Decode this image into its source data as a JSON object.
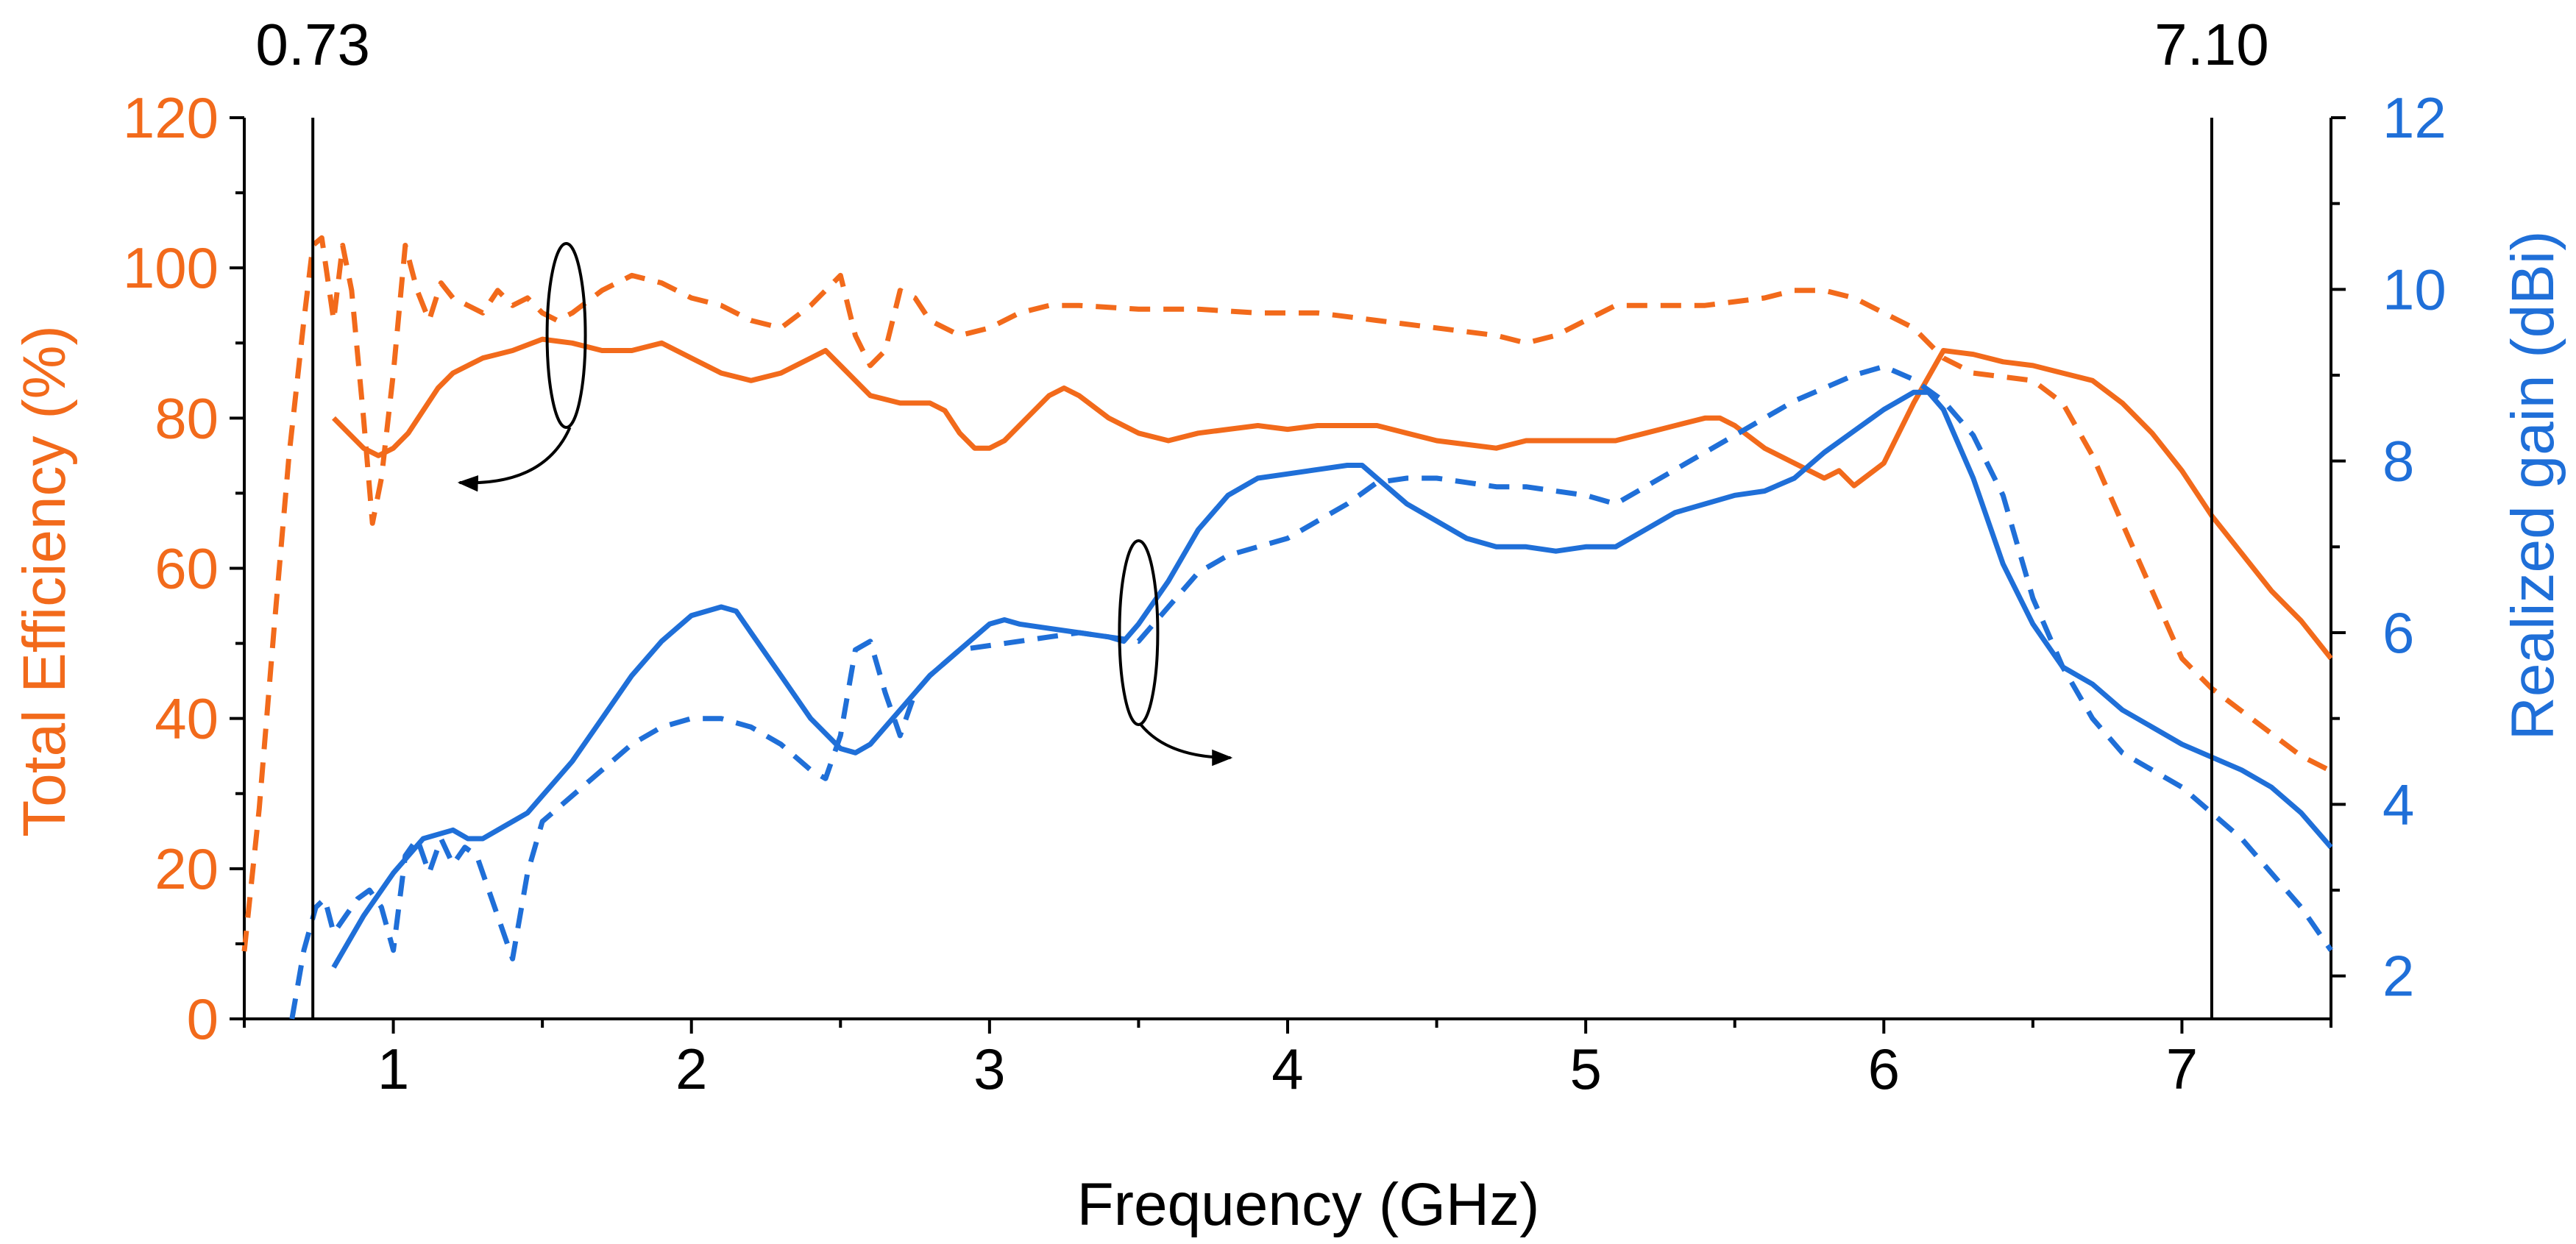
{
  "chart_data": {
    "type": "line",
    "xlabel": "Frequency (GHz)",
    "ylabel_left": "Total Efficiency (%)",
    "ylabel_right": "Realized gain (dBi)",
    "xlim": [
      0.5,
      7.5
    ],
    "ylim_left": [
      0,
      120
    ],
    "ylim_right": [
      1.5,
      12
    ],
    "x_ticks": [
      1,
      2,
      3,
      4,
      5,
      6,
      7
    ],
    "y_left_ticks": [
      0,
      20,
      40,
      60,
      80,
      100,
      120
    ],
    "y_right_ticks": [
      2,
      4,
      6,
      8,
      10,
      12
    ],
    "colors": {
      "efficiency": "#f26a1b",
      "gain": "#1f6fd8",
      "axis": "#000000"
    },
    "vlines": [
      {
        "x": 0.73,
        "label": "0.73"
      },
      {
        "x": 7.1,
        "label": "7.10"
      }
    ],
    "annotations": [
      {
        "type": "ellipse-arrow",
        "center": [
          1.58,
          91
        ],
        "points_to": "left-axis"
      },
      {
        "type": "ellipse-arrow",
        "center": [
          3.5,
          6.0
        ],
        "points_to": "right-axis"
      }
    ],
    "series": [
      {
        "axis": "left",
        "style": "dashed",
        "color": "#f26a1b",
        "x": [
          0.5,
          0.55,
          0.6,
          0.65,
          0.7,
          0.73,
          0.76,
          0.8,
          0.83,
          0.86,
          0.9,
          0.93,
          0.96,
          1.0,
          1.04,
          1.08,
          1.12,
          1.16,
          1.2,
          1.25,
          1.3,
          1.35,
          1.4,
          1.45,
          1.5,
          1.55,
          1.6,
          1.7,
          1.8,
          1.9,
          2.0,
          2.1,
          2.2,
          2.3,
          2.4,
          2.45,
          2.5,
          2.55,
          2.6,
          2.65,
          2.7,
          2.75,
          2.8,
          2.9,
          3.0,
          3.1,
          3.2,
          3.3,
          3.5,
          3.7,
          3.9,
          4.1,
          4.3,
          4.5,
          4.7,
          4.8,
          4.9,
          5.0,
          5.1,
          5.2,
          5.4,
          5.6,
          5.7,
          5.8,
          5.9,
          6.0,
          6.1,
          6.2,
          6.3,
          6.5,
          6.6,
          6.7,
          6.8,
          6.9,
          7.0,
          7.1,
          7.2,
          7.3,
          7.4,
          7.5
        ],
        "y": [
          9,
          28,
          52,
          75,
          93,
          103,
          104,
          93,
          103,
          97,
          80,
          66,
          72,
          86,
          103,
          97,
          93,
          98,
          96,
          95,
          94,
          97,
          95,
          96,
          94,
          93,
          94,
          97,
          99,
          98,
          96,
          95,
          93,
          92,
          95,
          97,
          99,
          91,
          87,
          89,
          97,
          96,
          93,
          91,
          92,
          94,
          95,
          95,
          94.5,
          94.5,
          94,
          94,
          93,
          92,
          91,
          90,
          91,
          93,
          95,
          95,
          95,
          96,
          97,
          97,
          96,
          94,
          92,
          88,
          86,
          85,
          82,
          75,
          66,
          57,
          48,
          44,
          41,
          38,
          35,
          33
        ]
      },
      {
        "axis": "left",
        "style": "solid",
        "color": "#f26a1b",
        "x": [
          0.8,
          0.85,
          0.9,
          0.95,
          1.0,
          1.05,
          1.1,
          1.15,
          1.2,
          1.25,
          1.3,
          1.35,
          1.4,
          1.5,
          1.6,
          1.7,
          1.8,
          1.9,
          2.0,
          2.1,
          2.2,
          2.3,
          2.4,
          2.45,
          2.5,
          2.6,
          2.7,
          2.8,
          2.85,
          2.9,
          2.95,
          3.0,
          3.05,
          3.1,
          3.2,
          3.25,
          3.3,
          3.4,
          3.5,
          3.6,
          3.7,
          3.8,
          3.9,
          4.0,
          4.1,
          4.2,
          4.3,
          4.4,
          4.5,
          4.6,
          4.7,
          4.8,
          4.9,
          5.0,
          5.1,
          5.2,
          5.3,
          5.4,
          5.45,
          5.5,
          5.6,
          5.7,
          5.75,
          5.8,
          5.85,
          5.9,
          6.0,
          6.1,
          6.2,
          6.3,
          6.4,
          6.5,
          6.6,
          6.7,
          6.8,
          6.9,
          7.0,
          7.1,
          7.2,
          7.3,
          7.4,
          7.5
        ],
        "y": [
          80,
          78,
          76,
          75,
          76,
          78,
          81,
          84,
          86,
          87,
          88,
          88.5,
          89,
          90.5,
          90,
          89,
          89,
          90,
          88,
          86,
          85,
          86,
          88,
          89,
          87,
          83,
          82,
          82,
          81,
          78,
          76,
          76,
          77,
          79,
          83,
          84,
          83,
          80,
          78,
          77,
          78,
          78.5,
          79,
          78.5,
          79,
          79,
          79,
          78,
          77,
          76.5,
          76,
          77,
          77,
          77,
          77,
          78,
          79,
          80,
          80,
          79,
          76,
          74,
          73,
          72,
          73,
          71,
          74,
          82,
          89,
          88.5,
          87.5,
          87,
          86,
          85,
          82,
          78,
          73,
          67,
          62,
          57,
          53,
          48
        ]
      },
      {
        "axis": "right",
        "style": "dashed",
        "color": "#1f6fd8",
        "x": [
          0.66,
          0.7,
          0.74,
          0.77,
          0.8,
          0.84,
          0.88,
          0.92,
          0.96,
          1.0,
          1.04,
          1.08,
          1.12,
          1.16,
          1.2,
          1.24,
          1.28,
          1.32,
          1.36,
          1.4,
          1.45,
          1.5,
          1.6,
          1.7,
          1.8,
          1.9,
          2.0,
          2.1,
          2.2,
          2.3,
          2.4,
          2.45,
          2.5,
          2.55,
          2.6,
          2.65,
          2.7,
          2.75,
          2.8,
          2.9,
          3.0,
          3.1,
          3.2,
          3.3,
          3.4,
          3.5,
          3.6,
          3.7,
          3.8,
          3.9,
          4.0,
          4.1,
          4.2,
          4.3,
          4.4,
          4.5,
          4.6,
          4.7,
          4.8,
          4.9,
          5.0,
          5.1,
          5.2,
          5.3,
          5.4,
          5.5,
          5.6,
          5.7,
          5.8,
          5.9,
          6.0,
          6.1,
          6.2,
          6.3,
          6.4,
          6.5,
          6.6,
          6.7,
          6.8,
          6.9,
          7.0,
          7.1,
          7.2,
          7.3,
          7.4,
          7.5
        ],
        "y": [
          1.5,
          2.3,
          2.8,
          2.9,
          2.5,
          2.7,
          2.9,
          3.0,
          2.8,
          2.3,
          3.4,
          3.6,
          3.2,
          3.6,
          3.3,
          3.5,
          3.4,
          3.0,
          2.6,
          2.2,
          3.2,
          3.8,
          4.1,
          4.4,
          4.7,
          4.9,
          5.0,
          5.0,
          4.9,
          4.7,
          4.4,
          4.3,
          4.8,
          5.8,
          5.9,
          5.3,
          4.8,
          5.3,
          5.5,
          5.8,
          5.85,
          5.9,
          5.95,
          6.0,
          5.95,
          5.9,
          6.3,
          6.7,
          6.9,
          7.0,
          7.1,
          7.3,
          7.5,
          7.75,
          7.8,
          7.8,
          7.75,
          7.7,
          7.7,
          7.65,
          7.6,
          7.5,
          7.7,
          7.9,
          8.1,
          8.3,
          8.5,
          8.7,
          8.85,
          9.0,
          9.1,
          8.95,
          8.7,
          8.3,
          7.6,
          6.4,
          5.6,
          5.0,
          4.6,
          4.4,
          4.2,
          3.9,
          3.6,
          3.2,
          2.8,
          2.3
        ]
      },
      {
        "axis": "right",
        "style": "solid",
        "color": "#1f6fd8",
        "x": [
          0.8,
          0.9,
          1.0,
          1.1,
          1.2,
          1.25,
          1.3,
          1.35,
          1.4,
          1.45,
          1.5,
          1.6,
          1.7,
          1.8,
          1.9,
          2.0,
          2.1,
          2.15,
          2.2,
          2.3,
          2.4,
          2.5,
          2.55,
          2.6,
          2.7,
          2.8,
          2.9,
          3.0,
          3.05,
          3.1,
          3.2,
          3.3,
          3.4,
          3.45,
          3.5,
          3.6,
          3.7,
          3.8,
          3.9,
          4.0,
          4.1,
          4.2,
          4.25,
          4.3,
          4.4,
          4.5,
          4.6,
          4.7,
          4.8,
          4.9,
          5.0,
          5.1,
          5.2,
          5.3,
          5.4,
          5.5,
          5.6,
          5.7,
          5.8,
          5.9,
          6.0,
          6.1,
          6.15,
          6.2,
          6.3,
          6.4,
          6.5,
          6.6,
          6.7,
          6.8,
          6.9,
          7.0,
          7.1,
          7.2,
          7.3,
          7.4,
          7.5
        ],
        "y": [
          2.1,
          2.7,
          3.2,
          3.6,
          3.7,
          3.6,
          3.6,
          3.7,
          3.8,
          3.9,
          4.1,
          4.5,
          5.0,
          5.5,
          5.9,
          6.2,
          6.3,
          6.25,
          6.0,
          5.5,
          5.0,
          4.65,
          4.6,
          4.7,
          5.1,
          5.5,
          5.8,
          6.1,
          6.15,
          6.1,
          6.05,
          6.0,
          5.95,
          5.9,
          6.1,
          6.6,
          7.2,
          7.6,
          7.8,
          7.85,
          7.9,
          7.95,
          7.95,
          7.8,
          7.5,
          7.3,
          7.1,
          7.0,
          7.0,
          6.95,
          7.0,
          7.0,
          7.2,
          7.4,
          7.5,
          7.6,
          7.65,
          7.8,
          8.1,
          8.35,
          8.6,
          8.8,
          8.8,
          8.6,
          7.8,
          6.8,
          6.1,
          5.6,
          5.4,
          5.1,
          4.9,
          4.7,
          4.55,
          4.4,
          4.2,
          3.9,
          3.5
        ]
      }
    ]
  }
}
